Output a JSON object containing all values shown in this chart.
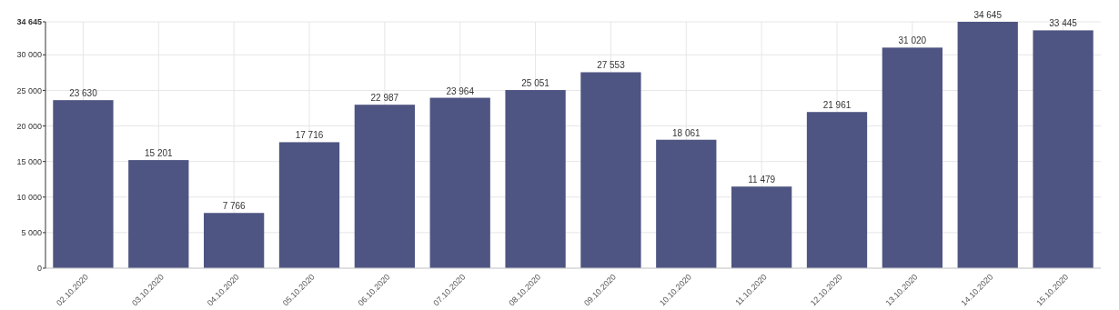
{
  "chart_data": {
    "type": "bar",
    "categories": [
      "02.10.2020",
      "03.10.2020",
      "04.10.2020",
      "05.10.2020",
      "06.10.2020",
      "07.10.2020",
      "08.10.2020",
      "09.10.2020",
      "10.10.2020",
      "11.10.2020",
      "12.10.2020",
      "13.10.2020",
      "14.10.2020",
      "15.10.2020"
    ],
    "values": [
      23630,
      15201,
      7766,
      17716,
      22987,
      23964,
      25051,
      27553,
      18061,
      11479,
      21961,
      31020,
      34645,
      33445
    ],
    "value_labels": [
      "23 630",
      "15 201",
      "7 766",
      "17 716",
      "22 987",
      "23 964",
      "25 051",
      "27 553",
      "18 061",
      "11 479",
      "21 961",
      "31 020",
      "34 645",
      "33 445"
    ],
    "color": "#4f5582",
    "ylim": [
      0,
      34645
    ],
    "yticks": [
      0,
      {
        "value": 5000,
        "label": "5 000"
      },
      {
        "value": 10000,
        "label": "10 000"
      },
      {
        "value": 15000,
        "label": "15 000"
      },
      {
        "value": 20000,
        "label": "20 000"
      },
      {
        "value": 25000,
        "label": "25 000"
      },
      {
        "value": 30000,
        "label": "30 000"
      },
      {
        "value": 34645,
        "label": "34 645"
      }
    ],
    "grid": true
  }
}
